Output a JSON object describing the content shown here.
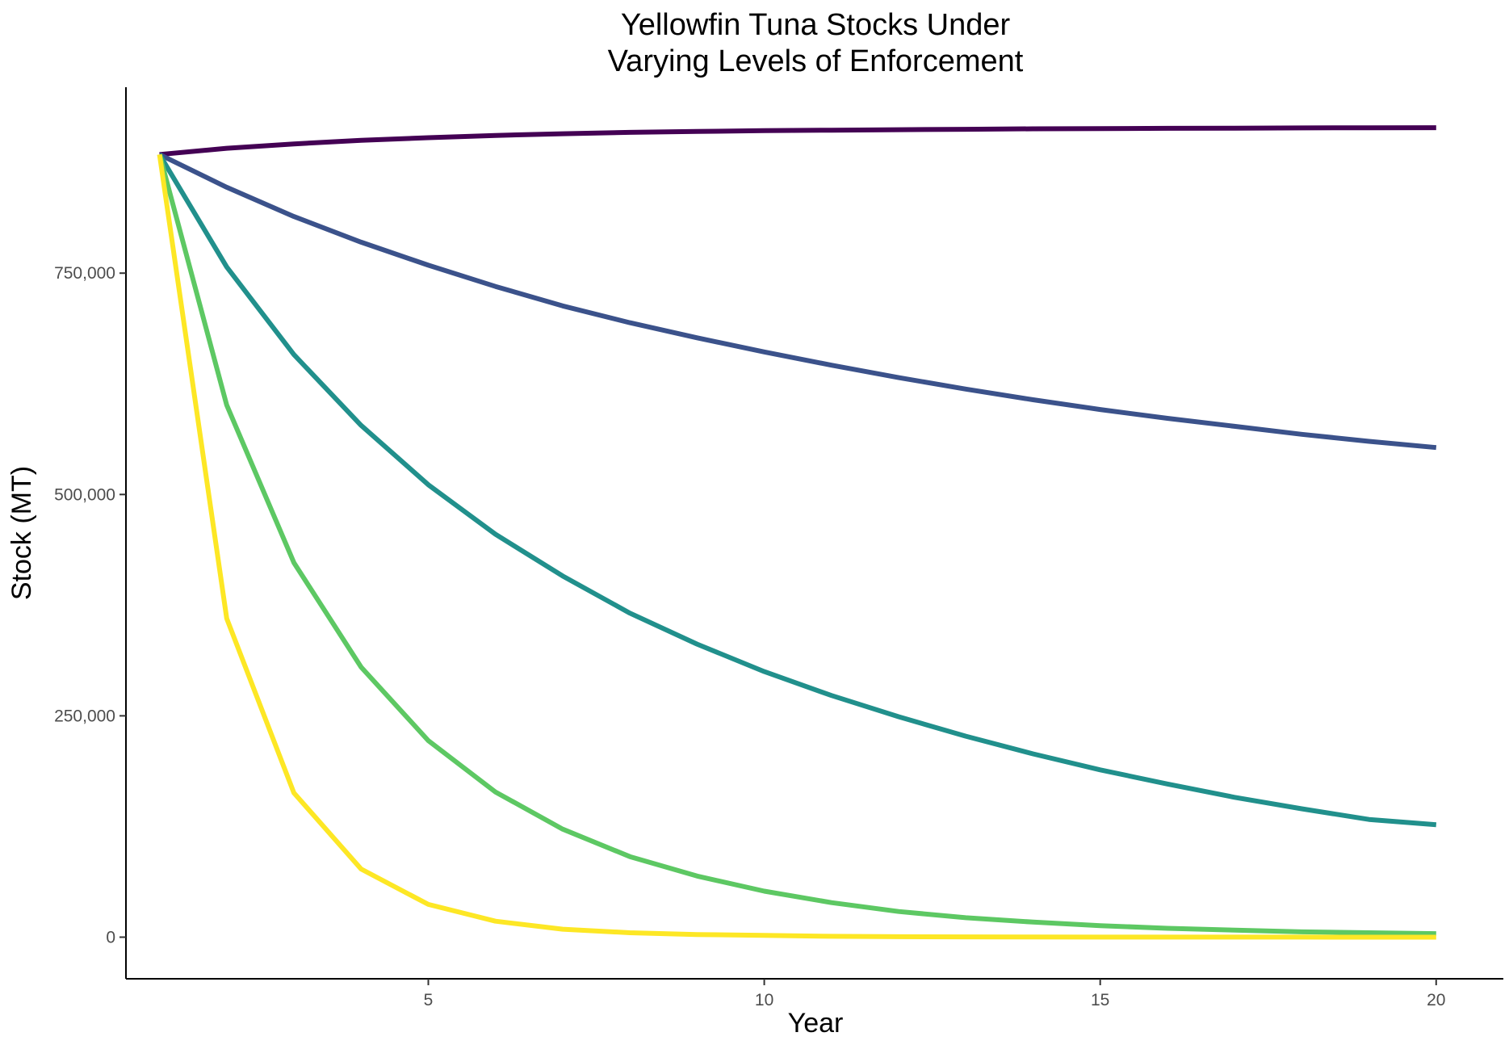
{
  "chart_data": {
    "type": "line",
    "title": [
      "Yellowfin Tuna Stocks Under",
      "Varying Levels of Enforcement"
    ],
    "xlabel": "Year",
    "ylabel": "Stock (MT)",
    "xlim": [
      0.5,
      21.0
    ],
    "ylim": [
      -47000,
      960000
    ],
    "x_ticks": [
      5,
      10,
      15,
      20
    ],
    "y_ticks": [
      0,
      250000,
      500000,
      750000
    ],
    "y_tick_labels": [
      "0",
      "250,000",
      "500,000",
      "750,000"
    ],
    "grid": false,
    "legend": "none",
    "x": [
      1,
      2,
      3,
      4,
      5,
      6,
      7,
      8,
      9,
      10,
      11,
      12,
      13,
      14,
      15,
      16,
      17,
      18,
      19,
      20
    ],
    "series": [
      {
        "color": "#440154",
        "values": [
          884000,
          891000,
          896000,
          900000,
          903000,
          905500,
          907500,
          909000,
          910000,
          911000,
          911500,
          912000,
          912500,
          913000,
          913300,
          913600,
          913800,
          914000,
          914200,
          914300
        ]
      },
      {
        "color": "#3B528B",
        "values": [
          884000,
          847000,
          814000,
          785000,
          759000,
          735000,
          713000,
          694000,
          677000,
          661000,
          646000,
          632000,
          619000,
          607000,
          596000,
          586000,
          577000,
          568000,
          560000,
          553000
        ]
      },
      {
        "color": "#21908C",
        "values": [
          884000,
          757000,
          658000,
          578000,
          511000,
          455000,
          408000,
          366000,
          331000,
          300000,
          273000,
          249000,
          227000,
          207000,
          189000,
          173000,
          158000,
          145000,
          133000,
          127000
        ]
      },
      {
        "color": "#5DC863",
        "values": [
          884000,
          601000,
          423000,
          305000,
          222000,
          164000,
          122000,
          91000,
          69000,
          52000,
          39000,
          29000,
          22000,
          17000,
          13000,
          10000,
          8000,
          6000,
          5000,
          4000
        ]
      },
      {
        "color": "#FDE725",
        "values": [
          884000,
          360000,
          163000,
          77000,
          37000,
          18000,
          9000,
          5000,
          3000,
          2000,
          1000,
          500,
          300,
          200,
          100,
          100,
          50,
          50,
          0,
          0
        ]
      }
    ]
  }
}
